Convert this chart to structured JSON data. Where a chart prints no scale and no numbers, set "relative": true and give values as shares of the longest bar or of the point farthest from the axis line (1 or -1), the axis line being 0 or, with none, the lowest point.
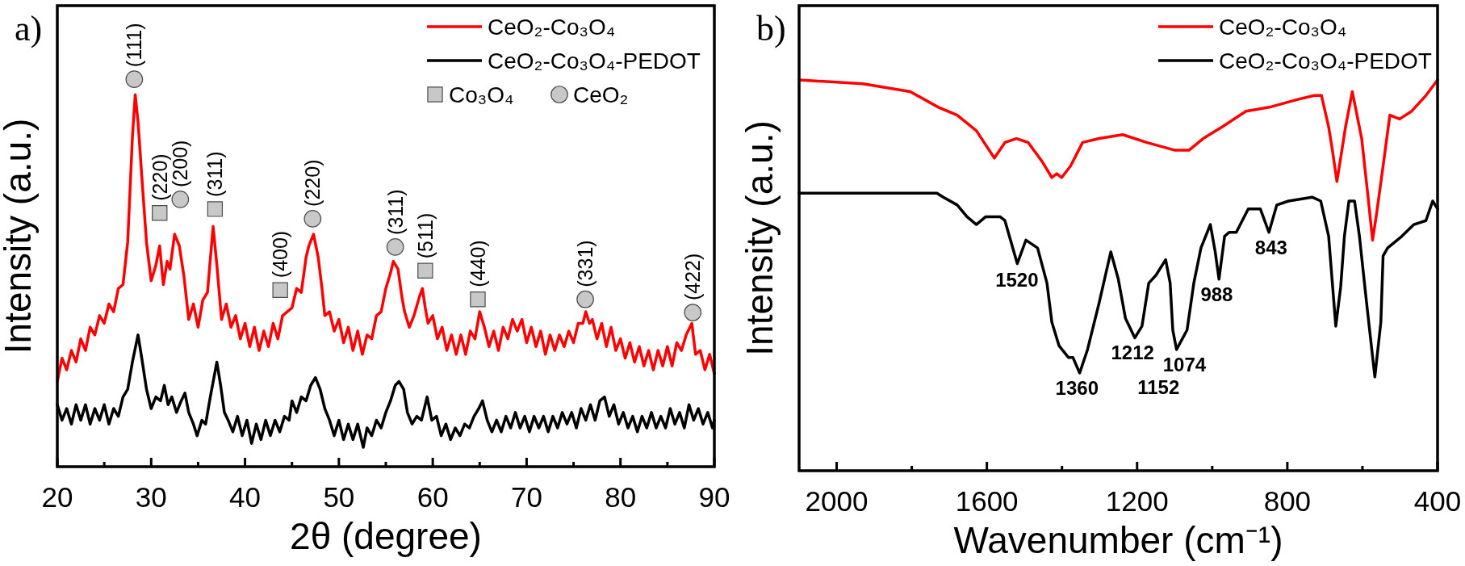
{
  "chart_data": [
    {
      "type": "line",
      "title": "a)",
      "xlabel": "2θ (degree)",
      "ylabel": "Intensity (a.u.)",
      "relative": true,
      "xlim": [
        20,
        90
      ],
      "xticks": [
        20,
        {
          "value": 25,
          "label": null
        },
        30,
        {
          "value": 35,
          "label": null
        },
        40,
        {
          "value": 45,
          "label": null
        },
        50,
        {
          "value": 55,
          "label": null
        },
        60,
        {
          "value": 65,
          "label": null
        },
        70,
        {
          "value": 75,
          "label": null
        },
        80,
        {
          "value": 85,
          "label": null
        },
        90
      ],
      "legend": "top right",
      "series": [
        {
          "name": "CeO₂-Co₃O₄",
          "color": "#ff0000",
          "x": [
            20,
            20.5,
            21,
            21.5,
            22,
            22.5,
            23,
            23.5,
            24,
            24.5,
            25,
            25.5,
            26,
            26.5,
            27,
            27.5,
            28,
            28.3,
            28.6,
            29,
            29.5,
            30,
            30.5,
            30.9,
            31.3,
            31.7,
            32,
            32.5,
            33,
            33.5,
            34,
            34.5,
            35,
            35.5,
            36,
            36.6,
            37,
            37.5,
            38,
            38.5,
            39,
            39.5,
            40,
            40.5,
            41,
            41.5,
            42,
            42.5,
            43,
            43.5,
            44,
            44.5,
            45,
            45.5,
            46,
            46.5,
            46.8,
            47.3,
            47.8,
            48.2,
            48.5,
            49,
            49.5,
            50,
            50.5,
            51,
            51.5,
            52,
            52.5,
            53,
            53.5,
            54,
            54.5,
            55,
            55.5,
            55.8,
            56.3,
            56.7,
            57,
            57.5,
            58,
            58.6,
            58.9,
            59.2,
            59.5,
            60,
            60.5,
            61,
            61.5,
            62,
            62.5,
            63,
            63.5,
            64,
            64.5,
            65,
            65.5,
            66,
            66.5,
            67,
            67.5,
            68,
            68.5,
            69,
            69.5,
            70,
            70.5,
            71,
            71.5,
            72,
            72.5,
            73,
            73.5,
            74,
            74.5,
            75,
            75.5,
            76,
            76.3,
            76.7,
            77,
            77.5,
            78,
            78.5,
            79,
            79.5,
            80,
            80.5,
            81,
            81.5,
            82,
            82.5,
            83,
            83.5,
            84,
            84.5,
            85,
            85.5,
            86,
            86.5,
            87,
            87.6,
            88,
            88.5,
            89,
            89.5,
            90
          ],
          "values": [
            0.22,
            0.28,
            0.25,
            0.3,
            0.27,
            0.33,
            0.3,
            0.36,
            0.34,
            0.39,
            0.37,
            0.42,
            0.4,
            0.46,
            0.47,
            0.58,
            0.85,
            0.96,
            0.89,
            0.75,
            0.58,
            0.48,
            0.52,
            0.57,
            0.47,
            0.53,
            0.51,
            0.6,
            0.57,
            0.49,
            0.38,
            0.42,
            0.36,
            0.43,
            0.45,
            0.62,
            0.52,
            0.38,
            0.42,
            0.36,
            0.39,
            0.33,
            0.37,
            0.31,
            0.36,
            0.3,
            0.35,
            0.31,
            0.37,
            0.33,
            0.39,
            0.4,
            0.41,
            0.46,
            0.45,
            0.54,
            0.57,
            0.6,
            0.54,
            0.46,
            0.39,
            0.4,
            0.35,
            0.38,
            0.32,
            0.36,
            0.3,
            0.35,
            0.29,
            0.34,
            0.33,
            0.39,
            0.4,
            0.46,
            0.5,
            0.53,
            0.51,
            0.44,
            0.4,
            0.36,
            0.39,
            0.44,
            0.46,
            0.41,
            0.37,
            0.39,
            0.33,
            0.36,
            0.3,
            0.34,
            0.29,
            0.34,
            0.29,
            0.35,
            0.33,
            0.4,
            0.36,
            0.31,
            0.35,
            0.3,
            0.36,
            0.33,
            0.38,
            0.35,
            0.38,
            0.32,
            0.36,
            0.31,
            0.35,
            0.29,
            0.34,
            0.3,
            0.34,
            0.31,
            0.35,
            0.32,
            0.37,
            0.37,
            0.4,
            0.37,
            0.38,
            0.33,
            0.37,
            0.31,
            0.36,
            0.3,
            0.33,
            0.28,
            0.32,
            0.27,
            0.31,
            0.26,
            0.3,
            0.25,
            0.3,
            0.26,
            0.31,
            0.26,
            0.32,
            0.3,
            0.34,
            0.37,
            0.29,
            0.3,
            0.25,
            0.29,
            0.24
          ]
        },
        {
          "name": "CeO₂-Co₃O₄-PEDOT",
          "color": "#000000",
          "x": [
            20,
            20.5,
            21,
            21.5,
            22,
            22.5,
            23,
            23.5,
            24,
            24.5,
            25,
            25.5,
            26,
            26.5,
            27,
            27.5,
            28,
            28.6,
            29,
            29.5,
            30,
            30.5,
            31,
            31.4,
            31.8,
            32.2,
            32.7,
            33.2,
            33.6,
            34,
            34.5,
            34.9,
            35.4,
            35.8,
            36.3,
            37,
            37.4,
            37.8,
            38.2,
            38.7,
            39.2,
            39.7,
            40.2,
            40.7,
            41.2,
            41.7,
            42.2,
            42.7,
            43.2,
            43.7,
            44.2,
            44.7,
            45,
            45.5,
            46,
            46.5,
            47,
            47.5,
            48,
            48.5,
            49,
            49.5,
            50,
            50.5,
            51,
            51.5,
            52,
            52.6,
            53,
            53.5,
            54,
            54.5,
            55,
            55.5,
            56,
            56.4,
            56.9,
            57.3,
            57.8,
            58.3,
            58.8,
            59.4,
            59.9,
            60.4,
            60.9,
            61.4,
            61.9,
            62.4,
            62.9,
            63.4,
            63.9,
            64.4,
            64.9,
            65.3,
            65.8,
            66.3,
            66.8,
            67.3,
            67.8,
            68.3,
            68.8,
            69.3,
            69.8,
            70.3,
            70.8,
            71.3,
            71.8,
            72.3,
            72.8,
            73.3,
            73.8,
            74.3,
            74.8,
            75.3,
            75.8,
            76.3,
            76.8,
            77.3,
            77.8,
            78.3,
            78.8,
            79.3,
            79.8,
            80.3,
            80.8,
            81.3,
            81.8,
            82.3,
            82.8,
            83.3,
            83.8,
            84.3,
            84.8,
            85.3,
            85.8,
            86.3,
            86.8,
            87.3,
            87.8,
            88.3,
            88.8,
            89.3,
            89.8,
            90
          ],
          "values": [
            0.16,
            0.12,
            0.15,
            0.11,
            0.16,
            0.12,
            0.16,
            0.11,
            0.15,
            0.12,
            0.16,
            0.11,
            0.15,
            0.13,
            0.18,
            0.2,
            0.27,
            0.34,
            0.28,
            0.2,
            0.15,
            0.18,
            0.17,
            0.21,
            0.16,
            0.18,
            0.14,
            0.17,
            0.19,
            0.14,
            0.11,
            0.08,
            0.12,
            0.11,
            0.18,
            0.27,
            0.21,
            0.14,
            0.12,
            0.09,
            0.13,
            0.08,
            0.12,
            0.06,
            0.11,
            0.07,
            0.12,
            0.08,
            0.12,
            0.09,
            0.13,
            0.12,
            0.17,
            0.14,
            0.18,
            0.17,
            0.21,
            0.23,
            0.2,
            0.15,
            0.12,
            0.08,
            0.12,
            0.07,
            0.11,
            0.07,
            0.11,
            0.05,
            0.1,
            0.08,
            0.12,
            0.1,
            0.14,
            0.17,
            0.21,
            0.22,
            0.2,
            0.14,
            0.11,
            0.13,
            0.12,
            0.18,
            0.12,
            0.13,
            0.08,
            0.11,
            0.07,
            0.1,
            0.08,
            0.11,
            0.1,
            0.13,
            0.15,
            0.17,
            0.12,
            0.09,
            0.12,
            0.09,
            0.13,
            0.1,
            0.14,
            0.1,
            0.13,
            0.09,
            0.13,
            0.1,
            0.13,
            0.09,
            0.13,
            0.1,
            0.14,
            0.11,
            0.14,
            0.1,
            0.15,
            0.12,
            0.16,
            0.12,
            0.17,
            0.18,
            0.13,
            0.16,
            0.11,
            0.14,
            0.1,
            0.13,
            0.09,
            0.13,
            0.1,
            0.14,
            0.1,
            0.13,
            0.1,
            0.15,
            0.11,
            0.14,
            0.1,
            0.16,
            0.12,
            0.15,
            0.11,
            0.14,
            0.1,
            0.12
          ]
        },
        {
          "name": "Co₃O₄",
          "type": "scatter",
          "marker": "square",
          "color": "#c8c8c8",
          "x": [
            30.9,
            36.8,
            43.75,
            59.2,
            64.8
          ],
          "values": [
            0.655,
            0.665,
            0.456,
            0.506,
            0.432
          ]
        },
        {
          "name": "CeO₂",
          "type": "scatter",
          "marker": "circle",
          "color": "#c8c8c8",
          "x": [
            28.2,
            33.1,
            47.2,
            56.0,
            76.25,
            87.7
          ],
          "values": [
            1.0,
            0.69,
            0.64,
            0.567,
            0.432,
            0.398
          ]
        }
      ],
      "annotations": [
        {
          "text": "(111)",
          "x": 28.2,
          "y": 1.0
        },
        {
          "text": "(220)",
          "x": 30.9,
          "y": 0.655
        },
        {
          "text": "(200)",
          "x": 33.1,
          "y": 0.69
        },
        {
          "text": "(311)",
          "x": 36.8,
          "y": 0.665
        },
        {
          "text": "(400)",
          "x": 43.75,
          "y": 0.456
        },
        {
          "text": "(220)",
          "x": 47.2,
          "y": 0.64
        },
        {
          "text": "(311)",
          "x": 56.0,
          "y": 0.567
        },
        {
          "text": "(511)",
          "x": 59.2,
          "y": 0.506
        },
        {
          "text": "(440)",
          "x": 64.8,
          "y": 0.432
        },
        {
          "text": "(331)",
          "x": 76.25,
          "y": 0.432
        },
        {
          "text": "(422)",
          "x": 87.7,
          "y": 0.398
        }
      ]
    },
    {
      "type": "line",
      "title": "b)",
      "xlabel": "Wavenumber (cm⁻¹)",
      "ylabel": "Intensity (a.u.)",
      "relative": true,
      "xlim": [
        2100,
        400
      ],
      "xticks": [
        2000,
        {
          "value": 1800,
          "label": null
        },
        1600,
        {
          "value": 1400,
          "label": null
        },
        1200,
        {
          "value": 1000,
          "label": null
        },
        800,
        {
          "value": 600,
          "label": null
        },
        400
      ],
      "legend": "top right",
      "series": [
        {
          "name": "CeO₂-Co₃O₄",
          "color": "#ff0000",
          "x": [
            2100,
            1930,
            1804,
            1729,
            1679,
            1628,
            1580,
            1552,
            1521,
            1490,
            1452,
            1427,
            1414,
            1401,
            1377,
            1345,
            1301,
            1238,
            1175,
            1099,
            1062,
            1024,
            973,
            910,
            848,
            772,
            728,
            709,
            690,
            680,
            668,
            658,
            645,
            627,
            602,
            585,
            573,
            562,
            545,
            527,
            501,
            469,
            431,
            400
          ],
          "values": [
            1.0,
            0.99,
            0.97,
            0.93,
            0.91,
            0.87,
            0.8,
            0.84,
            0.85,
            0.84,
            0.79,
            0.75,
            0.76,
            0.75,
            0.78,
            0.84,
            0.85,
            0.86,
            0.84,
            0.82,
            0.82,
            0.85,
            0.88,
            0.92,
            0.93,
            0.95,
            0.96,
            0.96,
            0.88,
            0.82,
            0.74,
            0.8,
            0.88,
            0.97,
            0.85,
            0.7,
            0.59,
            0.66,
            0.78,
            0.91,
            0.9,
            0.92,
            0.96,
            1.0
          ]
        },
        {
          "name": "CeO₂-Co₃O₄-PEDOT",
          "color": "#000000",
          "x": [
            2100,
            2000,
            1900,
            1800,
            1750,
            1733,
            1716,
            1679,
            1653,
            1628,
            1603,
            1565,
            1552,
            1519,
            1496,
            1465,
            1440,
            1427,
            1408,
            1383,
            1371,
            1353,
            1332,
            1301,
            1270,
            1250,
            1231,
            1206,
            1187,
            1169,
            1150,
            1124,
            1112,
            1105,
            1095,
            1067,
            1049,
            1030,
            1005,
            992,
            982,
            967,
            955,
            936,
            904,
            872,
            849,
            828,
            797,
            734,
            711,
            690,
            671,
            658,
            648,
            636,
            621,
            608,
            589,
            567,
            551,
            545,
            533,
            495,
            463,
            431,
            413,
            400
          ],
          "values": [
            0.71,
            0.71,
            0.71,
            0.71,
            0.71,
            0.71,
            0.7,
            0.68,
            0.65,
            0.63,
            0.65,
            0.65,
            0.64,
            0.53,
            0.59,
            0.57,
            0.48,
            0.38,
            0.32,
            0.29,
            0.29,
            0.25,
            0.31,
            0.43,
            0.56,
            0.49,
            0.39,
            0.34,
            0.37,
            0.48,
            0.5,
            0.54,
            0.48,
            0.36,
            0.31,
            0.36,
            0.48,
            0.57,
            0.63,
            0.56,
            0.49,
            0.6,
            0.61,
            0.61,
            0.67,
            0.67,
            0.61,
            0.68,
            0.69,
            0.7,
            0.69,
            0.6,
            0.37,
            0.47,
            0.6,
            0.69,
            0.69,
            0.6,
            0.43,
            0.24,
            0.38,
            0.55,
            0.57,
            0.6,
            0.63,
            0.64,
            0.69,
            0.67
          ]
        }
      ],
      "annotations": [
        {
          "text": "1520",
          "x": 1520,
          "y": 0.53
        },
        {
          "text": "1360",
          "x": 1360,
          "y": 0.26
        },
        {
          "text": "1212",
          "x": 1212,
          "y": 0.35
        },
        "1152",
        {
          "text": "1074",
          "x": 1074,
          "y": 0.35
        },
        {
          "text": "988",
          "x": 988,
          "y": 0.53
        },
        {
          "text": "843",
          "x": 843,
          "y": 0.63
        }
      ]
    }
  ]
}
